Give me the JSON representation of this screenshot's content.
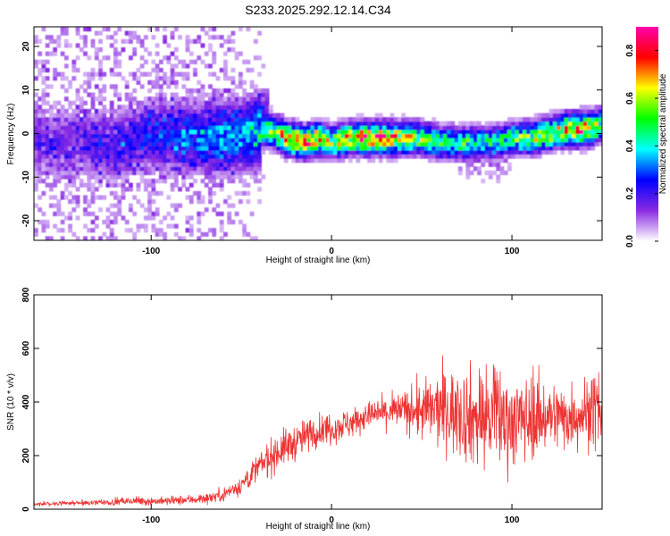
{
  "title": "S233.2025.292.12.14.C34",
  "chart_data": [
    {
      "type": "heatmap",
      "name": "spectrogram",
      "xlabel": "Height of straight line (km)",
      "ylabel": "Frequency (Hz)",
      "xlim": [
        -165,
        150
      ],
      "ylim": [
        -24.5,
        24.5
      ],
      "x_ticks": [
        -100,
        0,
        100
      ],
      "y_ticks": [
        -20,
        -10,
        0,
        10,
        20
      ],
      "colorbar": {
        "label": "Normalized spectral amplitude",
        "range": [
          0.0,
          0.9
        ],
        "ticks": [
          "0.0",
          "0.2",
          "0.4",
          "0.6",
          "0.8"
        ],
        "colors": [
          "#ffffff",
          "#8a2be2",
          "#0000ff",
          "#00ffff",
          "#00ff00",
          "#ffff00",
          "#ff0000",
          "#ff00aa"
        ]
      },
      "ridge": {
        "x": [
          -165,
          -140,
          -120,
          -100,
          -80,
          -60,
          -45,
          -35,
          -25,
          -15,
          -8,
          0,
          10,
          20,
          30,
          40,
          50,
          60,
          70,
          80,
          90,
          100,
          110,
          120,
          130,
          140,
          150
        ],
        "freq": [
          -2,
          -2,
          -3,
          0,
          -1,
          -1,
          0,
          1,
          -1,
          -2,
          -1,
          -2,
          -1,
          -1,
          -1,
          -1,
          -1,
          -2,
          -2,
          -2,
          -2,
          -1,
          -1,
          0,
          1,
          1,
          2
        ],
        "peak_amplitude": [
          0.15,
          0.15,
          0.2,
          0.25,
          0.3,
          0.35,
          0.4,
          0.55,
          0.8,
          0.85,
          0.8,
          0.6,
          0.75,
          0.85,
          0.8,
          0.7,
          0.6,
          0.55,
          0.55,
          0.5,
          0.5,
          0.55,
          0.6,
          0.7,
          0.8,
          0.85,
          0.6
        ]
      }
    },
    {
      "type": "line",
      "name": "snr",
      "xlabel": "Height of straight line (km)",
      "ylabel": "SNR (10 * v/v)",
      "xlim": [
        -165,
        150
      ],
      "ylim": [
        0,
        800
      ],
      "x_ticks": [
        "-100",
        "0",
        "100"
      ],
      "y_ticks": [
        "0",
        "200",
        "400",
        "600",
        "800"
      ],
      "color": "#ee3333",
      "x": [
        -165,
        -150,
        -130,
        -110,
        -90,
        -80,
        -70,
        -60,
        -50,
        -40,
        -30,
        -20,
        -10,
        0,
        10,
        20,
        30,
        40,
        50,
        60,
        70,
        80,
        90,
        100,
        110,
        120,
        130,
        140,
        150
      ],
      "baseline": [
        20,
        22,
        25,
        30,
        30,
        35,
        40,
        55,
        90,
        160,
        215,
        250,
        290,
        305,
        320,
        350,
        360,
        370,
        365,
        370,
        365,
        340,
        345,
        330,
        340,
        350,
        345,
        360,
        375
      ],
      "spread": [
        8,
        8,
        10,
        14,
        16,
        18,
        20,
        25,
        35,
        55,
        70,
        65,
        60,
        60,
        55,
        50,
        60,
        70,
        110,
        140,
        160,
        190,
        200,
        170,
        150,
        130,
        120,
        130,
        150
      ]
    }
  ]
}
